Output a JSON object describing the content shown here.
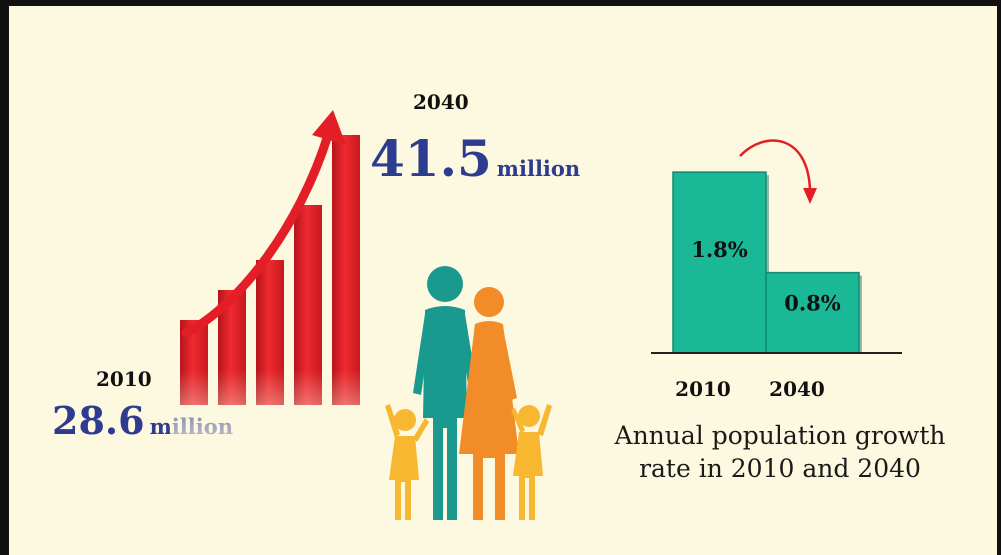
{
  "chart_data": [
    {
      "type": "bar",
      "title": "",
      "categories": [
        "2010",
        "2040"
      ],
      "values": [
        28.6,
        41.5
      ],
      "units": "million",
      "value_labels": [
        "28.6",
        "41.5"
      ]
    },
    {
      "type": "bar",
      "title": "Annual population growth rate in 2010 and 2040",
      "title_lines": [
        "Annual population growth",
        "rate in 2010 and 2040"
      ],
      "categories": [
        "2010",
        "2040"
      ],
      "values": [
        1.8,
        0.8
      ],
      "value_labels": [
        "1.8%",
        "0.8%"
      ],
      "ylim": [
        0,
        2.0
      ]
    }
  ],
  "colors": {
    "background": "#fdf8e0",
    "population_bar": "#e41e26",
    "rate_bar": "#1ab896",
    "value_text": "#2e3c8f",
    "arrow": "#e41e26",
    "figure_teal": "#1a9a8e",
    "figure_orange": "#f28c28",
    "figure_yellow": "#f7b731"
  },
  "icons": [
    "rising-bar-chart-icon",
    "family-icon",
    "curved-arrow-icon"
  ]
}
